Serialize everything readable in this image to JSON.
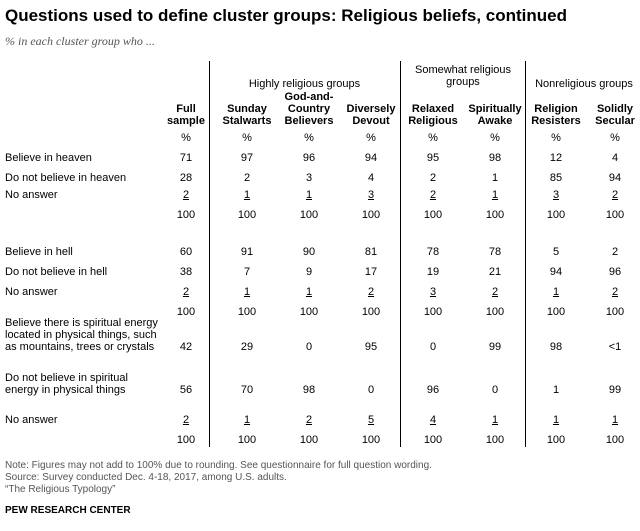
{
  "title": "Questions used to define cluster groups: Religious beliefs, continued",
  "subtitle": "% in each cluster group who ...",
  "groups": {
    "highly": "Highly religious groups",
    "somewhat": "Somewhat religious groups",
    "nonreligious": "Nonreligious groups"
  },
  "columns": [
    {
      "line1": "Full",
      "line2": "sample"
    },
    {
      "line1": "Sunday",
      "line2": "Stalwarts"
    },
    {
      "line1": "God-and-",
      "line2": "Country",
      "line3": "Believers"
    },
    {
      "line1": "Diversely",
      "line2": "Devout"
    },
    {
      "line1": "Relaxed",
      "line2": "Religious"
    },
    {
      "line1": "Spiritually",
      "line2": "Awake"
    },
    {
      "line1": "Religion",
      "line2": "Resisters"
    },
    {
      "line1": "Solidly",
      "line2": "Secular"
    }
  ],
  "pct_symbol": "%",
  "rows": [
    {
      "label": "Believe in heaven",
      "values": [
        "71",
        "97",
        "96",
        "94",
        "95",
        "98",
        "12",
        "4"
      ]
    },
    {
      "label": "Do not believe in heaven",
      "values": [
        "28",
        "2",
        "3",
        "4",
        "2",
        "1",
        "85",
        "94"
      ]
    },
    {
      "label": "No answer",
      "values": [
        "2",
        "1",
        "1",
        "3",
        "2",
        "1",
        "3",
        "2"
      ]
    },
    {
      "label": "",
      "values": [
        "100",
        "100",
        "100",
        "100",
        "100",
        "100",
        "100",
        "100"
      ]
    },
    {
      "label": "Believe in hell",
      "values": [
        "60",
        "91",
        "90",
        "81",
        "78",
        "78",
        "5",
        "2"
      ]
    },
    {
      "label": "Do not believe in hell",
      "values": [
        "38",
        "7",
        "9",
        "17",
        "19",
        "21",
        "94",
        "96"
      ]
    },
    {
      "label": "No answer",
      "values": [
        "2",
        "1",
        "1",
        "2",
        "3",
        "2",
        "1",
        "2"
      ]
    },
    {
      "label": "",
      "values": [
        "100",
        "100",
        "100",
        "100",
        "100",
        "100",
        "100",
        "100"
      ]
    },
    {
      "label": "Believe there is spiritual energy located in physical things, such as mountains, trees or crystals",
      "label_lines": [
        "Believe there is spiritual energy",
        "located in physical things, such",
        "as mountains, trees or crystals"
      ],
      "values": [
        "42",
        "29",
        "0",
        "95",
        "0",
        "99",
        "98",
        "<1"
      ]
    },
    {
      "label": "Do not believe in spiritual energy in physical things",
      "label_lines": [
        "Do not believe in spiritual",
        "energy in physical things"
      ],
      "values": [
        "56",
        "70",
        "98",
        "0",
        "96",
        "0",
        "1",
        "99"
      ]
    },
    {
      "label": "No answer",
      "values": [
        "2",
        "1",
        "2",
        "5",
        "4",
        "1",
        "1",
        "1"
      ]
    },
    {
      "label": "",
      "values": [
        "100",
        "100",
        "100",
        "100",
        "100",
        "100",
        "100",
        "100"
      ]
    }
  ],
  "footer": {
    "note": "Note: Figures may not add to 100% due to rounding. See questionnaire for full question wording.",
    "source": "Source: Survey conducted Dec. 4-18, 2017, among U.S. adults.",
    "report": "“The Religious Typology”",
    "brand": "PEW RESEARCH CENTER"
  }
}
